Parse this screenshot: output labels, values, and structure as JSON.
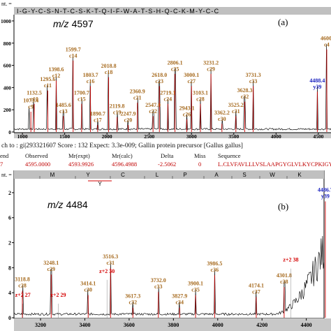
{
  "colors": {
    "spectrum": "#111111",
    "c_ion": "#a66a1e",
    "z_ion": "#d40000",
    "y_ion": "#1a22c0",
    "axis": "#000000",
    "seq_bg": "#c0c0c0",
    "axis_bar": "#c8c8c8",
    "peak_red": "#d00000"
  },
  "panel_a": {
    "panel_label": "(a)",
    "mz_label": "m/z 4597",
    "ylabel_fragment": "nt. =",
    "yticks": [
      {
        "v": 1000,
        "t": "1000"
      },
      {
        "v": 800,
        "t": "800"
      },
      {
        "v": 600,
        "t": "600"
      },
      {
        "v": 400,
        "t": "400"
      },
      {
        "v": 200,
        "t": "200"
      },
      {
        "v": 0,
        "t": "0"
      }
    ],
    "xticks": [
      {
        "v": 1000,
        "t": "1000"
      },
      {
        "v": 1500,
        "t": "1500"
      },
      {
        "v": 2000,
        "t": "2000"
      },
      {
        "v": 2500,
        "t": "2500"
      },
      {
        "v": 3000,
        "t": "3000"
      },
      {
        "v": 3500,
        "t": "3500"
      },
      {
        "v": 4000,
        "t": "4000"
      },
      {
        "v": 4500,
        "t": "4500"
      }
    ],
    "sequence": "I-G-Y-C-S-N-T-C-S-K-T-Q-I-F-W-A-T-S-H-Q-C-K-M-Y-C-C",
    "annotations": [
      {
        "mz": "1075.4",
        "ion": "c9",
        "x": 1100,
        "y": 230
      },
      {
        "mz": "1132.5",
        "ion": "c10",
        "x": 1140,
        "y": 300
      },
      {
        "mz": "1295.6",
        "ion": "c11",
        "x": 1300,
        "y": 420
      },
      {
        "mz": "1398.6",
        "ion": "c12",
        "x": 1400,
        "y": 510
      },
      {
        "mz": "1485.6",
        "ion": "c13",
        "x": 1485,
        "y": 190
      },
      {
        "mz": "1599.7",
        "ion": "c14",
        "x": 1600,
        "y": 690
      },
      {
        "mz": "1700.7",
        "ion": "c15",
        "x": 1700,
        "y": 300
      },
      {
        "mz": "1803.7",
        "ion": "c16",
        "x": 1805,
        "y": 460
      },
      {
        "mz": "1890.7",
        "ion": "c17",
        "x": 1890,
        "y": 110
      },
      {
        "mz": "2018.8",
        "ion": "c18",
        "x": 2020,
        "y": 540
      },
      {
        "mz": "2119.8",
        "ion": "c19",
        "x": 2120,
        "y": 180
      },
      {
        "mz": "2247.9",
        "ion": "c20",
        "x": 2250,
        "y": 110
      },
      {
        "mz": "2360.9",
        "ion": "c21",
        "x": 2360,
        "y": 310
      },
      {
        "mz": "2547.0",
        "ion": "c22",
        "x": 2545,
        "y": 190
      },
      {
        "mz": "2618.0",
        "ion": "c23",
        "x": 2620,
        "y": 460
      },
      {
        "mz": "2719.1",
        "ion": "c24",
        "x": 2720,
        "y": 300
      },
      {
        "mz": "2806.1",
        "ion": "c25",
        "x": 2805,
        "y": 570
      },
      {
        "mz": "2943.1",
        "ion": "c26",
        "x": 2945,
        "y": 160
      },
      {
        "mz": "3000.1",
        "ion": "c27",
        "x": 3000,
        "y": 460
      },
      {
        "mz": "3103.1",
        "ion": "c28",
        "x": 3105,
        "y": 300
      },
      {
        "mz": "3231.2",
        "ion": "c29",
        "x": 3230,
        "y": 570
      },
      {
        "mz": "3362.2",
        "ion": "c30",
        "x": 3360,
        "y": 120
      },
      {
        "mz": "3525.2",
        "ion": "c31",
        "x": 3525,
        "y": 190
      },
      {
        "mz": "3628.3",
        "ion": "c32",
        "x": 3630,
        "y": 320
      },
      {
        "mz": "3731.3",
        "ion": "c33",
        "x": 3730,
        "y": 460
      },
      {
        "mz": "4488.4",
        "ion": "y39",
        "x": 4488,
        "y": 410,
        "kind": "y"
      },
      {
        "mz": "4600.",
        "ion": "c4",
        "x": 4600,
        "y": 790
      }
    ]
  },
  "middle": {
    "match_line": "ch to : gi|293321607 Score : 132 Expect: 3.3e-009; Gallin protein precursor [Gallus gallus]",
    "header": [
      "end",
      "Observed",
      "Mr(expt)",
      "Mr(calc)",
      "Delta",
      "Miss",
      "Sequence"
    ],
    "row": [
      "7",
      "4595.0000",
      "4593.9926",
      "4596.4988",
      "-2.5062",
      "0",
      "L.CLVFAVLLLVSLAAPGYGLVLKYCPKIGYCSNTCSK"
    ]
  },
  "panel_b": {
    "panel_label": "(b)",
    "mz_label": "m/z 4484",
    "ylabel_fragment": "nt. =",
    "yticks": [
      {
        "v": 2,
        "t": "2"
      },
      {
        "v": 1.6,
        "t": "6"
      },
      {
        "v": 1.2,
        "t": "2"
      },
      {
        "v": 0.8,
        "t": "8"
      },
      {
        "v": 0.4,
        "t": "4"
      },
      {
        "v": 0,
        "t": "0"
      }
    ],
    "xticks": [
      {
        "v": 3200,
        "t": "3200"
      },
      {
        "v": 3400,
        "t": "3400"
      },
      {
        "v": 3600,
        "t": "3600"
      },
      {
        "v": 3800,
        "t": "3800"
      },
      {
        "v": 4000,
        "t": "4000"
      },
      {
        "v": 4200,
        "t": "4200"
      },
      {
        "v": 4400,
        "t": "4400"
      }
    ],
    "sequence": [
      "M",
      "Y",
      "C",
      "L",
      "P",
      "A",
      "S",
      "W",
      "K"
    ],
    "bracket_label": "Y",
    "annotations": [
      {
        "mz": "3118.8",
        "ion": "c28",
        "x": 3118,
        "y": 0.52
      },
      {
        "mz": "z+2 27",
        "ion": "",
        "x": 3120,
        "y": 0.27,
        "kind": "z"
      },
      {
        "mz": "3248.1",
        "ion": "c29",
        "x": 3248,
        "y": 0.78
      },
      {
        "mz": "z+2 29",
        "ion": "",
        "x": 3280,
        "y": 0.27,
        "kind": "z"
      },
      {
        "mz": "z+2 30",
        "ion": "",
        "x": 3500,
        "y": 0.65,
        "kind": "z"
      },
      {
        "mz": "3414.1",
        "ion": "c30",
        "x": 3415,
        "y": 0.45
      },
      {
        "mz": "3516.3",
        "ion": "c31",
        "x": 3516,
        "y": 0.88
      },
      {
        "mz": "3617.3",
        "ion": "c32",
        "x": 3617,
        "y": 0.25
      },
      {
        "mz": "3732.0",
        "ion": "c33",
        "x": 3732,
        "y": 0.5
      },
      {
        "mz": "3827.9",
        "ion": "c34",
        "x": 3828,
        "y": 0.25
      },
      {
        "mz": "3900.1",
        "ion": "c35",
        "x": 3900,
        "y": 0.45
      },
      {
        "mz": "3986.5",
        "ion": "c36",
        "x": 3986,
        "y": 0.77
      },
      {
        "mz": "4174.1",
        "ion": "c37",
        "x": 4174,
        "y": 0.42
      },
      {
        "mz": "4301.8",
        "ion": "c38",
        "x": 4300,
        "y": 0.58
      },
      {
        "mz": "z+2 38",
        "ion": "",
        "x": 4330,
        "y": 0.83,
        "kind": "z"
      },
      {
        "mz": "4486.7",
        "ion": "y39",
        "x": 4486,
        "y": 1.95,
        "kind": "y"
      }
    ],
    "top_label": "4486.7",
    "top_label_ion": "y 39"
  },
  "chart_data": [
    {
      "type": "line",
      "title": "m/z 4597",
      "xlabel": "",
      "ylabel": "",
      "xlim": [
        900,
        4650
      ],
      "ylim": [
        0,
        1050
      ],
      "peaks": [
        {
          "x": 1075.4,
          "y": 230
        },
        {
          "x": 1132.5,
          "y": 300
        },
        {
          "x": 1295.6,
          "y": 420
        },
        {
          "x": 1398.6,
          "y": 510
        },
        {
          "x": 1485.6,
          "y": 190
        },
        {
          "x": 1599.7,
          "y": 690
        },
        {
          "x": 1700.7,
          "y": 300
        },
        {
          "x": 1803.7,
          "y": 460
        },
        {
          "x": 1890.7,
          "y": 110
        },
        {
          "x": 2018.8,
          "y": 540
        },
        {
          "x": 2119.8,
          "y": 180
        },
        {
          "x": 2247.9,
          "y": 110
        },
        {
          "x": 2360.9,
          "y": 310
        },
        {
          "x": 2547.0,
          "y": 190
        },
        {
          "x": 2618.0,
          "y": 460
        },
        {
          "x": 2719.1,
          "y": 300
        },
        {
          "x": 2806.1,
          "y": 570
        },
        {
          "x": 2943.1,
          "y": 160
        },
        {
          "x": 3000.1,
          "y": 460
        },
        {
          "x": 3103.1,
          "y": 300
        },
        {
          "x": 3231.2,
          "y": 570
        },
        {
          "x": 3362.2,
          "y": 120
        },
        {
          "x": 3525.2,
          "y": 190
        },
        {
          "x": 3628.3,
          "y": 320
        },
        {
          "x": 3731.3,
          "y": 460
        },
        {
          "x": 4488.4,
          "y": 410
        },
        {
          "x": 4600,
          "y": 790
        }
      ]
    },
    {
      "type": "line",
      "title": "m/z 4484",
      "xlabel": "",
      "ylabel": "",
      "xlim": [
        3080,
        4480
      ],
      "ylim": [
        0,
        2.2
      ],
      "peaks": [
        {
          "x": 3118.8,
          "y": 0.52
        },
        {
          "x": 3248.1,
          "y": 0.78
        },
        {
          "x": 3414.1,
          "y": 0.45
        },
        {
          "x": 3516.3,
          "y": 0.88
        },
        {
          "x": 3617.3,
          "y": 0.25
        },
        {
          "x": 3732.0,
          "y": 0.5
        },
        {
          "x": 3827.9,
          "y": 0.25
        },
        {
          "x": 3900.1,
          "y": 0.45
        },
        {
          "x": 3986.5,
          "y": 0.77
        },
        {
          "x": 4174.1,
          "y": 0.42
        },
        {
          "x": 4301.8,
          "y": 0.58
        },
        {
          "x": 4486.7,
          "y": 1.95
        }
      ]
    }
  ]
}
